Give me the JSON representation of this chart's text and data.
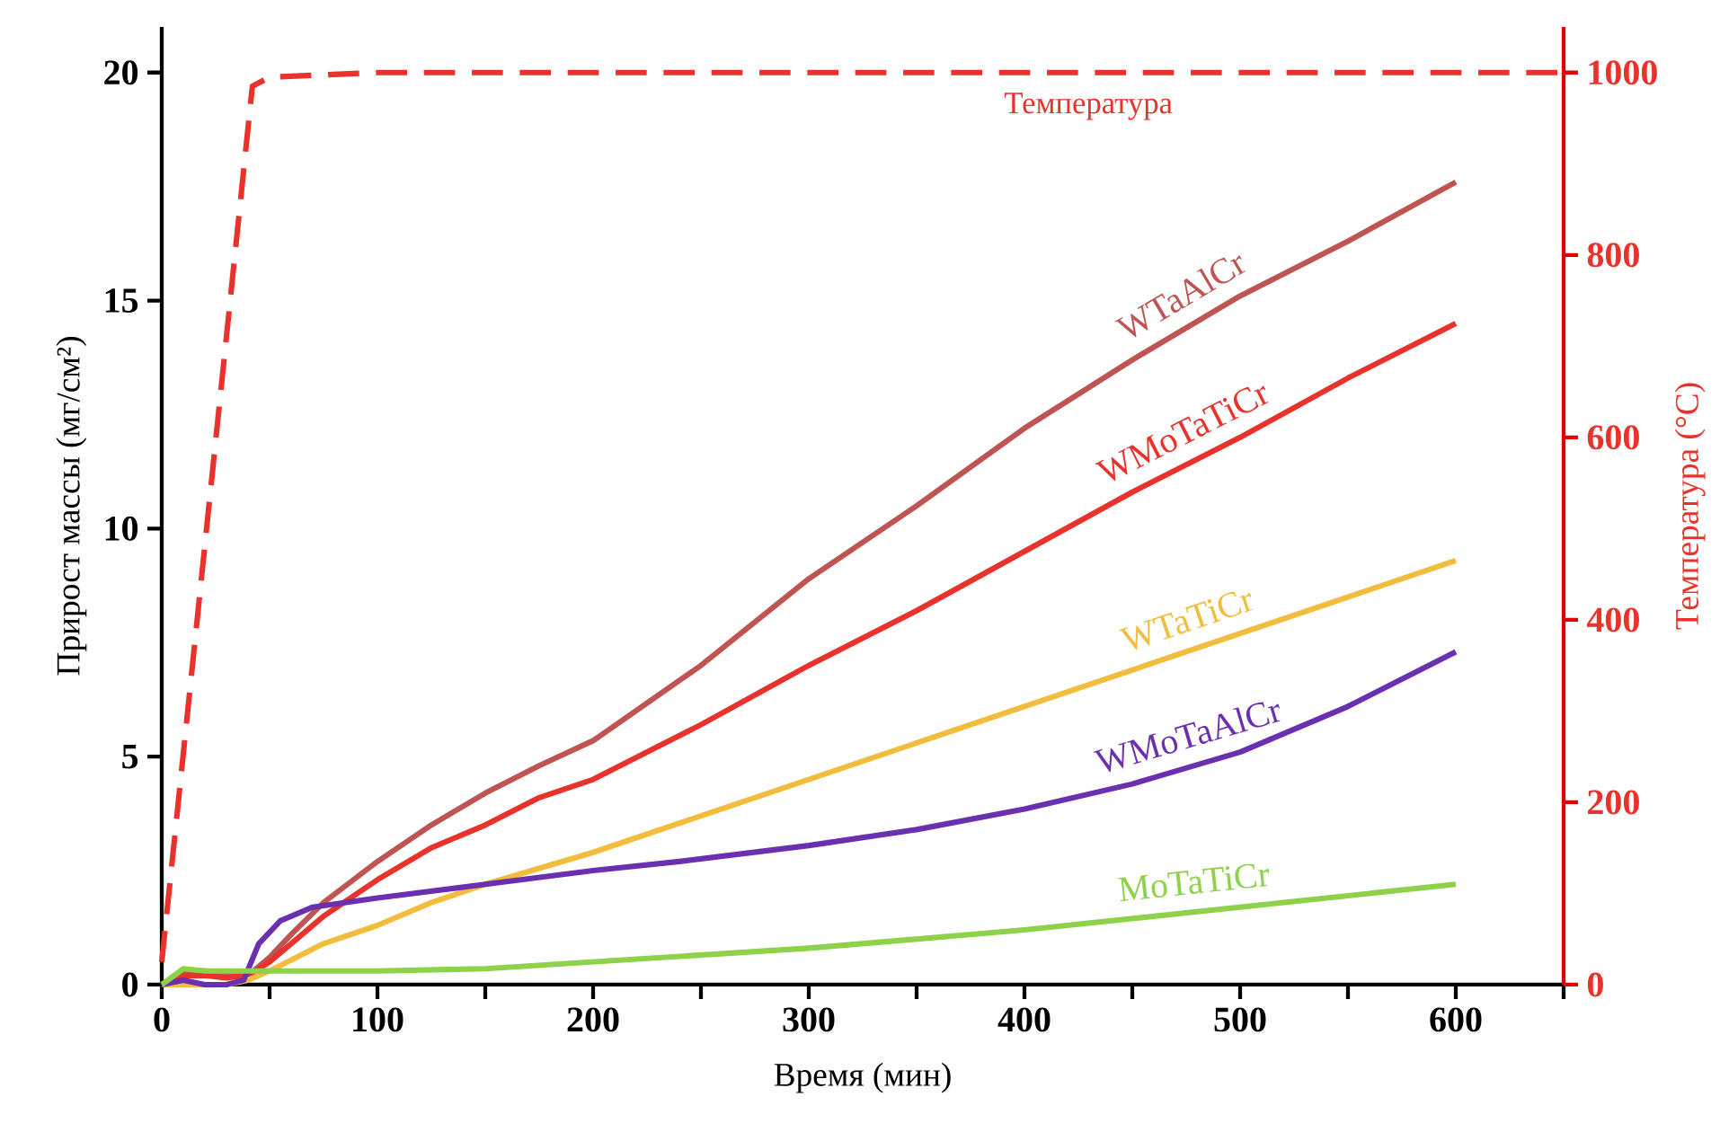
{
  "chart_data": {
    "type": "line",
    "xlabel": "Время (мин)",
    "ylabel": "Прирост массы (мг/см²)",
    "y2label": "Температура (°C)",
    "xlim": [
      0,
      650
    ],
    "ylim": [
      0,
      21
    ],
    "y2lim": [
      0,
      1050
    ],
    "xticks": [
      0,
      {
        "value": 50,
        "label": null
      },
      100,
      {
        "value": 150,
        "label": null
      },
      200,
      {
        "value": 250,
        "label": null
      },
      300,
      {
        "value": 350,
        "label": null
      },
      400,
      {
        "value": 450,
        "label": null
      },
      500,
      {
        "value": 550,
        "label": null
      },
      600,
      {
        "value": 650,
        "label": null
      }
    ],
    "yticks": [
      0,
      5,
      10,
      15,
      20
    ],
    "y2ticks": [
      0,
      200,
      400,
      600,
      800,
      1000
    ],
    "series": [
      {
        "name": "WTaAlCr",
        "color": "#bf5552",
        "x": [
          0,
          10,
          20,
          30,
          40,
          50,
          60,
          75,
          100,
          125,
          150,
          175,
          200,
          250,
          300,
          350,
          400,
          450,
          500,
          550,
          600
        ],
        "values": [
          0,
          0.3,
          0.3,
          0.2,
          0.2,
          0.6,
          1.1,
          1.8,
          2.7,
          3.5,
          4.2,
          4.8,
          5.35,
          7.0,
          8.9,
          10.5,
          12.2,
          13.7,
          15.1,
          16.3,
          17.6
        ]
      },
      {
        "name": "WMoTaTiCr",
        "color": "#e8322b",
        "x": [
          0,
          10,
          20,
          30,
          40,
          50,
          60,
          75,
          100,
          125,
          150,
          175,
          200,
          250,
          300,
          350,
          400,
          450,
          500,
          550,
          600
        ],
        "values": [
          0,
          0.2,
          0.2,
          0.15,
          0.2,
          0.5,
          0.9,
          1.5,
          2.3,
          3.0,
          3.5,
          4.1,
          4.5,
          5.7,
          7.0,
          8.2,
          9.5,
          10.8,
          12.0,
          13.3,
          14.5
        ]
      },
      {
        "name": "WTaTiCr",
        "color": "#f2bc3c",
        "x": [
          0,
          30,
          40,
          50,
          75,
          100,
          125,
          150,
          200,
          250,
          300,
          350,
          400,
          450,
          500,
          550,
          600
        ],
        "values": [
          0,
          0,
          0.1,
          0.3,
          0.9,
          1.3,
          1.8,
          2.2,
          2.9,
          3.7,
          4.5,
          5.3,
          6.1,
          6.9,
          7.7,
          8.5,
          9.3
        ]
      },
      {
        "name": "WMoTaAlCr",
        "color": "#6a30b0",
        "x": [
          0,
          10,
          20,
          30,
          38,
          45,
          55,
          70,
          100,
          150,
          200,
          240,
          300,
          350,
          400,
          450,
          500,
          550,
          600
        ],
        "values": [
          0,
          0.1,
          0,
          0,
          0.1,
          0.9,
          1.4,
          1.7,
          1.9,
          2.2,
          2.5,
          2.7,
          3.05,
          3.4,
          3.85,
          4.4,
          5.1,
          6.1,
          7.3
        ]
      },
      {
        "name": "MoTaTiCr",
        "color": "#8ed14b",
        "x": [
          0,
          10,
          20,
          30,
          50,
          100,
          150,
          200,
          250,
          300,
          350,
          400,
          450,
          500,
          550,
          600
        ],
        "values": [
          0,
          0.35,
          0.3,
          0.3,
          0.3,
          0.3,
          0.35,
          0.5,
          0.65,
          0.8,
          1.0,
          1.2,
          1.45,
          1.7,
          1.95,
          2.2
        ]
      },
      {
        "name": "Температура",
        "color": "#e8322b",
        "axis": "y2",
        "line_style": "dashed",
        "x": [
          0,
          42,
          50,
          100,
          650
        ],
        "values": [
          25,
          985,
          995,
          1000,
          1000
        ]
      }
    ]
  }
}
